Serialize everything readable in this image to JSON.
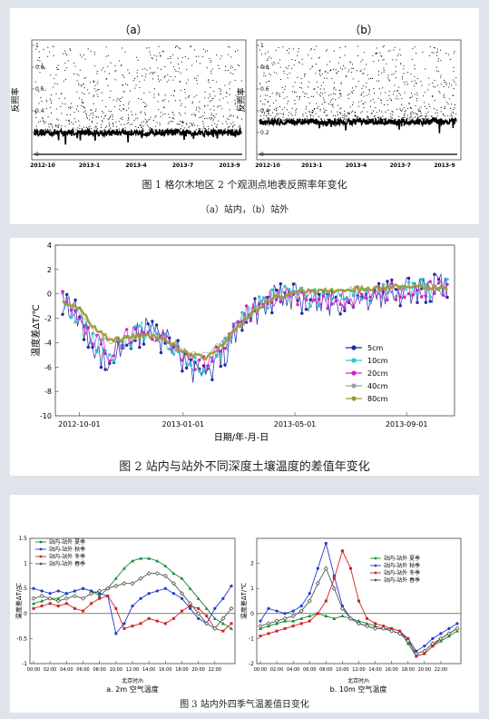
{
  "figure1": {
    "caption": "图 1  格尔木地区 2 个观测点地表反照率年变化",
    "subcaption": "（a）站内，（b）站外",
    "chart_data": [
      {
        "type": "scatter",
        "panel_label": "（a）",
        "ylabel": "反照率",
        "ylim": [
          0,
          1
        ],
        "yticks": [
          "0",
          "0.2",
          "0.4",
          "0.6",
          "0.8",
          "1"
        ],
        "xticks": [
          "2012-10",
          "2013-1",
          "2013-4",
          "2013-7",
          "2013-9"
        ],
        "baseline": 0.2
      },
      {
        "type": "scatter",
        "panel_label": "（b）",
        "ylabel": "反照率",
        "ylim": [
          0,
          1
        ],
        "yticks": [
          "0",
          "0.2",
          "0.4",
          "0.6",
          "0.8",
          "1"
        ],
        "xticks": [
          "2012-10",
          "2013-1",
          "2013-4",
          "2013-7",
          "2013-9"
        ],
        "baseline": 0.3
      }
    ]
  },
  "figure2": {
    "caption": "图 2  站内与站外不同深度土壤温度的差值年变化",
    "chart_data": {
      "type": "line",
      "ylabel": "温度差ΔT/℃",
      "xlabel": "日期/年-月-日",
      "ylim": [
        -10,
        4
      ],
      "yticks": [
        "-10",
        "-8",
        "-6",
        "-4",
        "-2",
        "0",
        "2",
        "4"
      ],
      "xticks": [
        "2012-10-01",
        "2013-01-01",
        "2013-05-01",
        "2013-09-01"
      ],
      "legend_position": "right-middle",
      "series": [
        {
          "name": "5cm",
          "color": "#1f2aa0",
          "values": [
            -0.5,
            -2,
            -4.5,
            -5.5,
            -4,
            -3,
            -3.5,
            -4.5,
            -6,
            -7,
            -5,
            -3,
            -1.5,
            -0.5,
            0,
            -0.5,
            -1,
            -0.8,
            -0.5,
            -0.2,
            0,
            0.2,
            0.3,
            0.4,
            0.5
          ]
        },
        {
          "name": "10cm",
          "color": "#2ec4d6",
          "values": [
            -0.5,
            -1.8,
            -4,
            -5,
            -3.8,
            -3,
            -3.2,
            -4.3,
            -5.5,
            -6.5,
            -4.5,
            -2.5,
            -1.2,
            -0.3,
            0,
            -0.2,
            -0.5,
            -0.3,
            -0.2,
            0,
            0.2,
            0.3,
            0.4,
            0.5,
            0.5
          ]
        },
        {
          "name": "20cm",
          "color": "#d020c8",
          "values": [
            -0.5,
            -1.6,
            -3.8,
            -4.8,
            -3.7,
            -3,
            -3.2,
            -4.2,
            -5.3,
            -6,
            -4.2,
            -2.3,
            -1.1,
            -0.3,
            0,
            -0.3,
            -0.6,
            -0.5,
            -0.3,
            -0.1,
            0.1,
            0.2,
            0.3,
            0.4,
            0.4
          ]
        },
        {
          "name": "40cm",
          "color": "#9aa0a6",
          "values": [
            -0.5,
            -1.4,
            -3.2,
            -4,
            -3.6,
            -3.3,
            -3.4,
            -4,
            -4.8,
            -5,
            -3.8,
            -2.2,
            -1,
            -0.2,
            0.2,
            0.3,
            0.2,
            0.3,
            0.4,
            0.5,
            0.6,
            0.6,
            0.6,
            0.5,
            0.4
          ]
        },
        {
          "name": "80cm",
          "color": "#9a9a2a",
          "values": [
            -0.6,
            -1.2,
            -2.8,
            -3.8,
            -3.6,
            -3.4,
            -3.6,
            -4.2,
            -5,
            -5.2,
            -4.2,
            -2.6,
            -1.4,
            -0.4,
            0,
            0.2,
            0.2,
            0.3,
            0.4,
            0.4,
            0.5,
            0.6,
            0.6,
            0.5,
            0.4
          ]
        }
      ]
    }
  },
  "figure3": {
    "caption": "图 3  站内外四季气温差值日变化",
    "chart_data": [
      {
        "type": "line",
        "panel_caption": "a. 2m 空气温度",
        "xlabel": "北京时/h",
        "ylabel": "温度差ΔT/℃",
        "ylim": [
          -1,
          1.5
        ],
        "yticks": [
          "-1",
          "-0.5",
          "0",
          "0.5",
          "1",
          "1.5"
        ],
        "xticks": [
          "00:00",
          "02:00",
          "04:00",
          "06:00",
          "08:00",
          "10:00",
          "12:00",
          "14:00",
          "16:00",
          "18:00",
          "20:00",
          "22:00"
        ],
        "legend_position": "top-left",
        "series": [
          {
            "name": "站内-站外 夏季",
            "color": "#138a2e",
            "values": [
              0.2,
              0.25,
              0.3,
              0.3,
              0.4,
              0.45,
              0.5,
              0.45,
              0.35,
              0.5,
              0.7,
              0.9,
              1.05,
              1.1,
              1.1,
              1.05,
              0.95,
              0.8,
              0.7,
              0.5,
              0.3,
              0.1,
              -0.1,
              -0.2,
              -0.3
            ]
          },
          {
            "name": "站内-站外 秋季",
            "color": "#1f3bd0",
            "values": [
              0.5,
              0.45,
              0.4,
              0.45,
              0.4,
              0.45,
              0.5,
              0.45,
              0.4,
              0.35,
              -0.4,
              -0.2,
              0.15,
              0.3,
              0.4,
              0.45,
              0.5,
              0.4,
              0.3,
              0.1,
              -0.1,
              -0.2,
              0.1,
              0.3,
              0.55
            ]
          },
          {
            "name": "站内-站外 冬季",
            "color": "#d02020",
            "values": [
              0.1,
              0.15,
              0.2,
              0.15,
              0.2,
              0.1,
              0.05,
              0.2,
              0.3,
              0.35,
              0.1,
              -0.3,
              -0.25,
              -0.2,
              -0.1,
              -0.15,
              -0.2,
              -0.1,
              0.05,
              0.15,
              0.1,
              -0.05,
              -0.3,
              -0.35,
              -0.2
            ]
          },
          {
            "name": "站内-站外 春季",
            "color": "#555555",
            "values": [
              0.3,
              0.35,
              0.3,
              0.25,
              0.3,
              0.35,
              0.3,
              0.4,
              0.45,
              0.5,
              0.55,
              0.6,
              0.6,
              0.7,
              0.8,
              0.8,
              0.75,
              0.6,
              0.4,
              0.2,
              0,
              -0.2,
              -0.3,
              -0.1,
              0.1
            ]
          }
        ]
      },
      {
        "type": "line",
        "panel_caption": "b. 10m 空气温度",
        "xlabel": "北京时/h",
        "ylabel": "温度差ΔT/℃",
        "ylim": [
          -2,
          3
        ],
        "yticks": [
          "-2",
          "-1",
          "0",
          "1",
          "2"
        ],
        "xticks": [
          "00:00",
          "02:00",
          "04:00",
          "06:00",
          "08:00",
          "10:00",
          "12:00",
          "14:00",
          "16:00",
          "18:00",
          "20:00",
          "22:00"
        ],
        "legend_position": "top-right",
        "series": [
          {
            "name": "站内-站外 夏季",
            "color": "#138a2e",
            "values": [
              -0.6,
              -0.5,
              -0.4,
              -0.3,
              -0.3,
              -0.2,
              -0.1,
              0,
              -0.1,
              -0.2,
              -0.1,
              -0.2,
              -0.3,
              -0.4,
              -0.5,
              -0.6,
              -0.6,
              -0.7,
              -1.2,
              -1.7,
              -1.6,
              -1.3,
              -1.1,
              -0.9,
              -0.7
            ]
          },
          {
            "name": "站内-站外 秋季",
            "color": "#1f3bd0",
            "values": [
              -0.3,
              0.2,
              0.1,
              0,
              0.1,
              0.3,
              0.8,
              1.8,
              2.8,
              1.5,
              0.3,
              -0.2,
              -0.4,
              -0.5,
              -0.6,
              -0.6,
              -0.7,
              -0.8,
              -1,
              -1.5,
              -1.3,
              -1,
              -0.8,
              -0.6,
              -0.4
            ]
          },
          {
            "name": "站内-站外 冬季",
            "color": "#d02020",
            "values": [
              -0.9,
              -0.8,
              -0.7,
              -0.6,
              -0.5,
              -0.4,
              -0.3,
              0,
              0.5,
              1.4,
              2.5,
              1.8,
              0.5,
              -0.2,
              -0.4,
              -0.5,
              -0.6,
              -0.7,
              -1,
              -1.7,
              -1.6,
              -1.3,
              -1,
              -0.8,
              -0.6
            ]
          },
          {
            "name": "站内-站外 春季",
            "color": "#555555",
            "values": [
              -0.5,
              -0.4,
              -0.3,
              -0.2,
              -0.1,
              0.1,
              0.5,
              1.2,
              1.8,
              1,
              0.2,
              -0.2,
              -0.4,
              -0.5,
              -0.6,
              -0.6,
              -0.7,
              -0.8,
              -1.1,
              -1.6,
              -1.5,
              -1.2,
              -1,
              -0.8,
              -0.6
            ]
          }
        ]
      }
    ]
  }
}
